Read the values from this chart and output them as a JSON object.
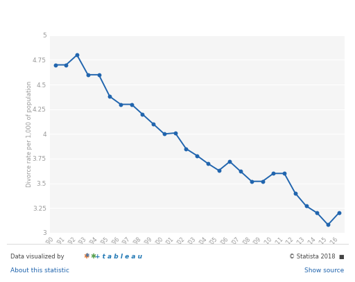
{
  "years": [
    "'90",
    "'91",
    "'92",
    "'93",
    "'94",
    "'95",
    "'96",
    "'97",
    "'98",
    "'99",
    "'00",
    "'01",
    "'02",
    "'03",
    "'04",
    "'05",
    "'06",
    "'07",
    "'08",
    "'09",
    "'10",
    "'11",
    "'12",
    "'13",
    "'14",
    "'15",
    "'16"
  ],
  "values": [
    4.7,
    4.7,
    4.8,
    4.6,
    4.6,
    4.38,
    4.3,
    4.3,
    4.2,
    4.1,
    4.0,
    4.01,
    3.85,
    3.78,
    3.7,
    3.63,
    3.72,
    3.62,
    3.52,
    3.52,
    3.6,
    3.6,
    3.4,
    3.27,
    3.2,
    3.08,
    3.2
  ],
  "line_color": "#2165ae",
  "marker_color": "#2165ae",
  "bg_color": "#ffffff",
  "plot_bg_color": "#f5f5f5",
  "grid_color": "#ffffff",
  "ylabel": "Divorce rate per 1,000 of population",
  "ylim": [
    3.0,
    5.0
  ],
  "yticks": [
    3.0,
    3.25,
    3.5,
    3.75,
    4.0,
    4.25,
    4.5,
    4.75,
    5.0
  ],
  "ytick_labels": [
    "3",
    "3.25",
    "3.5",
    "3.75",
    "4",
    "4.25",
    "4.5",
    "4.75",
    "5"
  ],
  "footer_right": "© Statista 2018",
  "footer_link_left": "About this statistic",
  "footer_link_right": "Show source",
  "tableau_color": "#1f77b4",
  "footer_text_color": "#444444",
  "link_color": "#2165ae",
  "tick_color": "#999999"
}
